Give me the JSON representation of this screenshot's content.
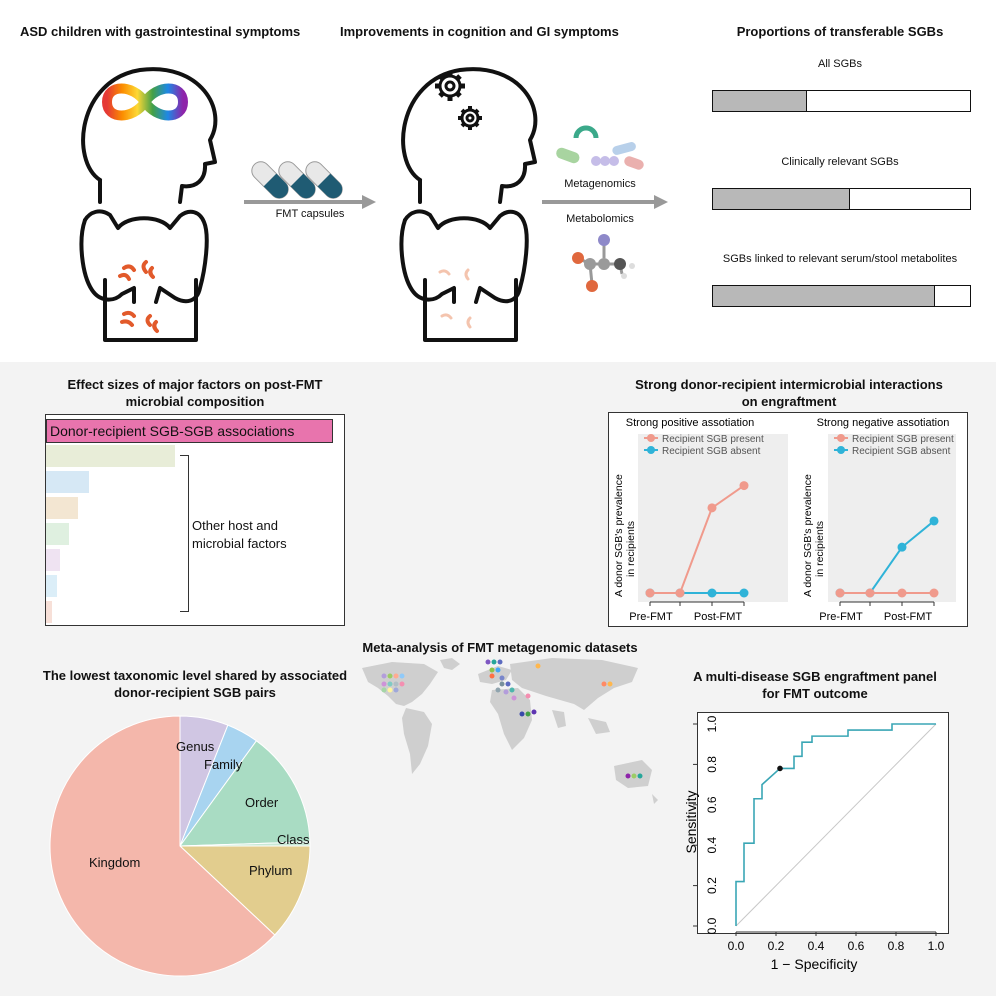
{
  "top": {
    "panel1_title": "ASD children with gastrointestinal symptoms",
    "panel2_title": "Improvements in cognition and GI symptoms",
    "panel3_title": "Proportions of transferable SGBs",
    "capsule_label": "FMT capsules",
    "metagenomics_label": "Metagenomics",
    "metabolomics_label": "Metabolomics",
    "bars": [
      {
        "label": "All SGBs",
        "fraction": 0.36
      },
      {
        "label": "Clinically relevant SGBs",
        "fraction": 0.53
      },
      {
        "label": "SGBs linked to relevant serum/stool metabolites",
        "fraction": 0.86
      }
    ]
  },
  "effect": {
    "title_line1": "Effect sizes of major factors on post-FMT",
    "title_line2": "microbial composition",
    "main_label": "Donor-recipient SGB-SGB associations",
    "other_line1": "Other host and",
    "other_line2": "microbial factors",
    "bars": [
      {
        "value": 1.0,
        "color": "#e874ad"
      },
      {
        "value": 0.45,
        "color": "#e8edd8"
      },
      {
        "value": 0.15,
        "color": "#d6e8f5"
      },
      {
        "value": 0.11,
        "color": "#f3e6d2"
      },
      {
        "value": 0.08,
        "color": "#dff0e0"
      },
      {
        "value": 0.05,
        "color": "#efe3f2"
      },
      {
        "value": 0.04,
        "color": "#dbeef8"
      },
      {
        "value": 0.02,
        "color": "#f7e0d8"
      }
    ]
  },
  "interact": {
    "title_line1": "Strong donor-recipient intermicrobial interactions",
    "title_line2": "on engraftment",
    "ylabel_line1": "A donor SGB's prevalence",
    "ylabel_line2": "in recipients",
    "xlabels": [
      "Pre-FMT",
      "Post-FMT"
    ],
    "legend_present": "Recipient SGB present",
    "legend_absent": "Recipient SGB absent",
    "colors": {
      "present": "#f09a8c",
      "absent": "#2fb3d8"
    },
    "panels": [
      {
        "title": "Strong positive assotiation",
        "present": [
          0,
          0,
          0.65,
          0.82
        ],
        "absent": [
          0,
          0,
          0,
          0
        ]
      },
      {
        "title": "Strong negative assotiation",
        "present": [
          0,
          0,
          0,
          0
        ],
        "absent": [
          0,
          0,
          0.35,
          0.55
        ]
      }
    ]
  },
  "meta": {
    "title": "Meta-analysis of FMT metagenomic datasets"
  },
  "pie": {
    "title_line1": "The lowest taxonomic level shared by associated",
    "title_line2": "donor-recipient SGB pairs"
  },
  "chart_data": [
    {
      "type": "pie",
      "title": "The lowest taxonomic level shared by associated donor-recipient SGB pairs",
      "slices": [
        {
          "label": "Kingdom",
          "value": 63,
          "color": "#f4b7ab"
        },
        {
          "label": "Genus",
          "value": 6,
          "color": "#d0c6e3"
        },
        {
          "label": "Family",
          "value": 4,
          "color": "#a8d4f0"
        },
        {
          "label": "Order",
          "value": 14.5,
          "color": "#a9dcc3"
        },
        {
          "label": "Class",
          "value": 0.5,
          "color": "#c9e8d6"
        },
        {
          "label": "Phylum",
          "value": 12,
          "color": "#e2cd8e"
        }
      ]
    },
    {
      "type": "line",
      "title": "A multi-disease SGB engraftment panel for FMT outcome",
      "xlabel": "1 − Specificity",
      "ylabel": "Sensitivity",
      "xlim": [
        0,
        1
      ],
      "ylim": [
        0,
        1
      ],
      "xticks": [
        "0.0",
        "0.2",
        "0.4",
        "0.6",
        "0.8",
        "1.0"
      ],
      "yticks": [
        "0.0",
        "0.2",
        "0.4",
        "0.6",
        "0.8",
        "1.0"
      ],
      "series": [
        {
          "values": [
            [
              0,
              0
            ],
            [
              0,
              0.22
            ],
            [
              0.04,
              0.22
            ],
            [
              0.04,
              0.41
            ],
            [
              0.09,
              0.41
            ],
            [
              0.09,
              0.63
            ],
            [
              0.13,
              0.63
            ],
            [
              0.13,
              0.7
            ],
            [
              0.22,
              0.78
            ],
            [
              0.29,
              0.78
            ],
            [
              0.29,
              0.84
            ],
            [
              0.33,
              0.84
            ],
            [
              0.33,
              0.91
            ],
            [
              0.38,
              0.91
            ],
            [
              0.38,
              0.94
            ],
            [
              0.56,
              0.94
            ],
            [
              0.56,
              0.97
            ],
            [
              0.78,
              0.97
            ],
            [
              0.78,
              1.0
            ],
            [
              1,
              1
            ]
          ]
        }
      ],
      "point": [
        0.22,
        0.78
      ],
      "line_color": "#3aa6b5"
    }
  ],
  "roc": {
    "title_line1": "A multi-disease SGB engraftment panel",
    "title_line2": "for FMT outcome",
    "xlabel": "1 − Specificity",
    "ylabel": "Sensitivity",
    "ticks": [
      "0.0",
      "0.2",
      "0.4",
      "0.6",
      "0.8",
      "1.0"
    ]
  },
  "pie_labels": {
    "kingdom": "Kingdom",
    "genus": "Genus",
    "family": "Family",
    "order": "Order",
    "class": "Class",
    "phylum": "Phylum"
  }
}
